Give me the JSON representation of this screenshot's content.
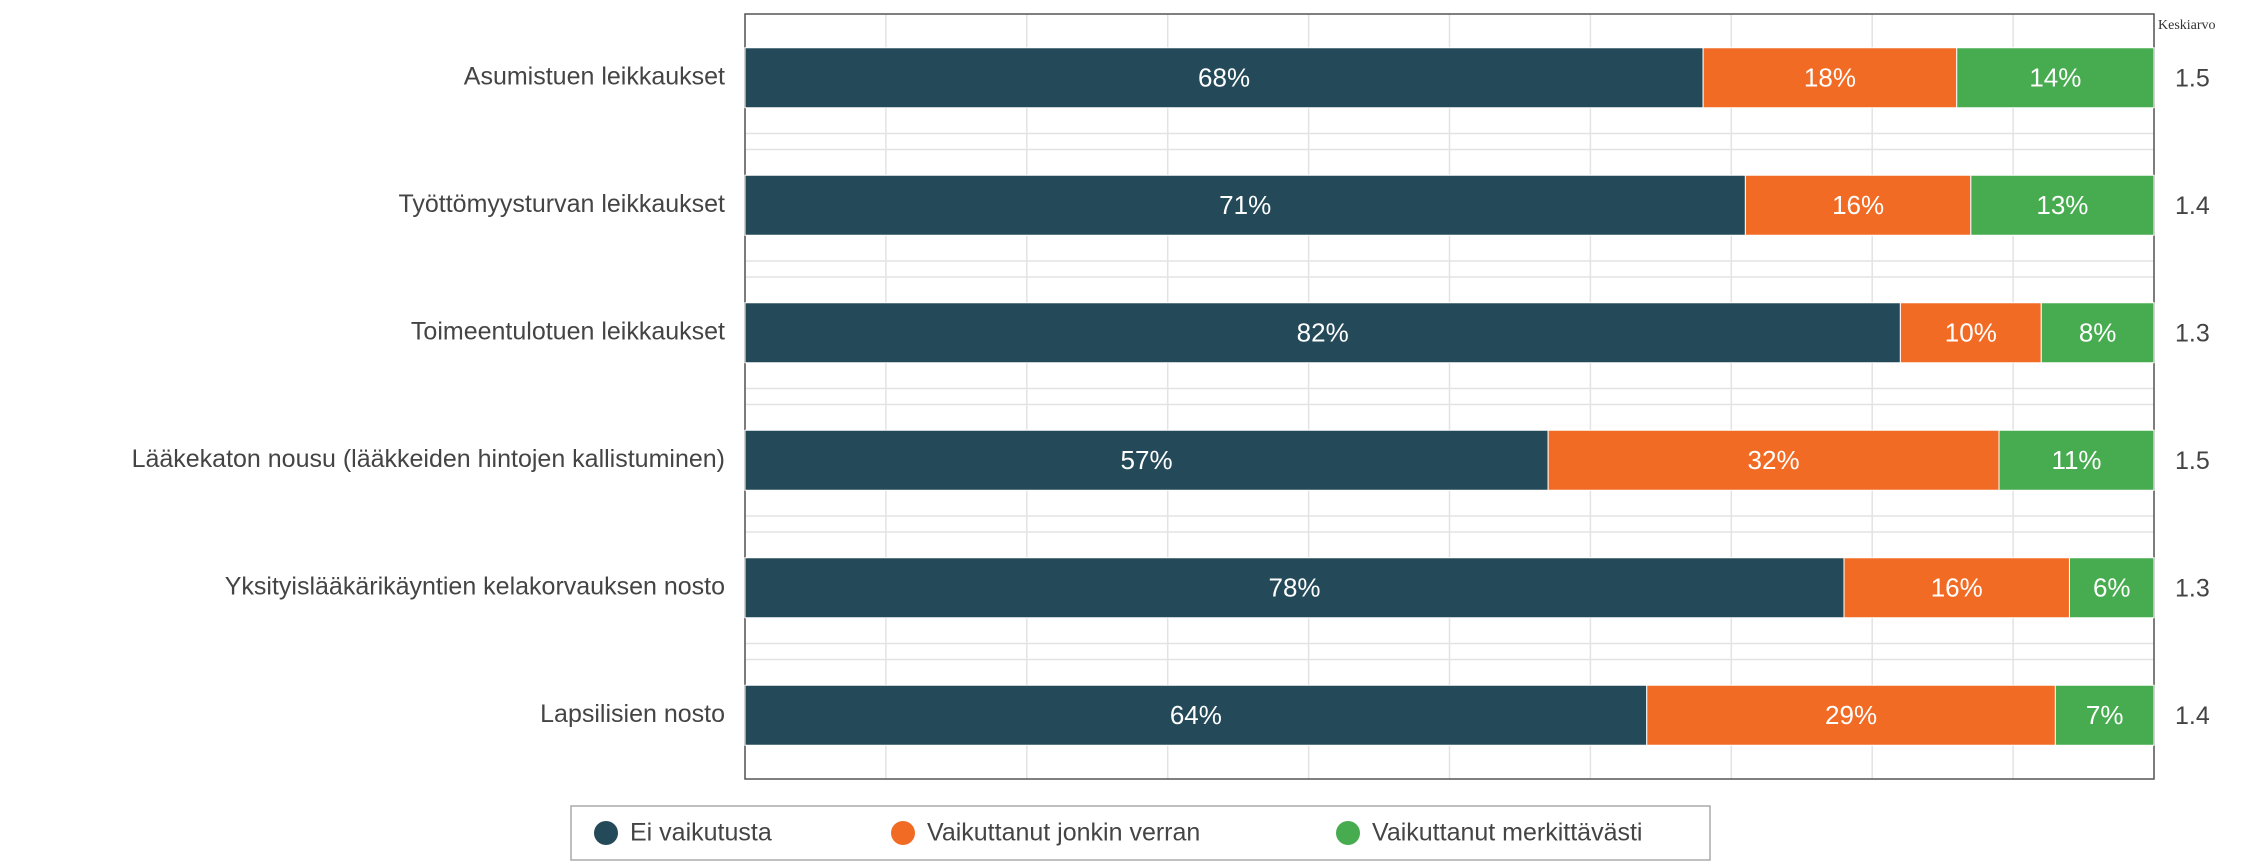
{
  "chart_data": {
    "type": "stacked-barh",
    "categories": [
      "Asumistuen leikkaukset",
      "Työttömyysturvan leikkaukset",
      "Toimeentulotuen leikkaukset",
      "Lääkekaton nousu (lääkkeiden hintojen kallistuminen)",
      "Yksityislääkärikäyntien kelakorvauksen nosto",
      "Lapsilisien nosto"
    ],
    "series": [
      {
        "name": "Ei vaikutusta",
        "color": "#244a5a",
        "values": [
          68,
          71,
          82,
          57,
          78,
          64
        ],
        "value_labels": [
          "68%",
          "71%",
          "82%",
          "57%",
          "78%",
          "64%"
        ]
      },
      {
        "name": "Vaikuttanut jonkin verran",
        "color": "#f26b24",
        "values": [
          18,
          16,
          10,
          32,
          16,
          29
        ],
        "value_labels": [
          "18%",
          "16%",
          "10%",
          "32%",
          "16%",
          "29%"
        ]
      },
      {
        "name": "Vaikuttanut merkittävästi",
        "color": "#47ab4f",
        "values": [
          14,
          13,
          8,
          11,
          6,
          7
        ],
        "value_labels": [
          "14%",
          "13%",
          "8%",
          "11%",
          "6%",
          "7%"
        ]
      }
    ],
    "averages": {
      "title": "Keskiarvo",
      "values": [
        1.5,
        1.4,
        1.3,
        1.5,
        1.3,
        1.4
      ]
    },
    "xlim": [
      0,
      100
    ],
    "xticks": [
      0,
      10,
      20,
      30,
      40,
      50,
      60,
      70,
      80,
      90,
      100
    ],
    "grid": true
  }
}
